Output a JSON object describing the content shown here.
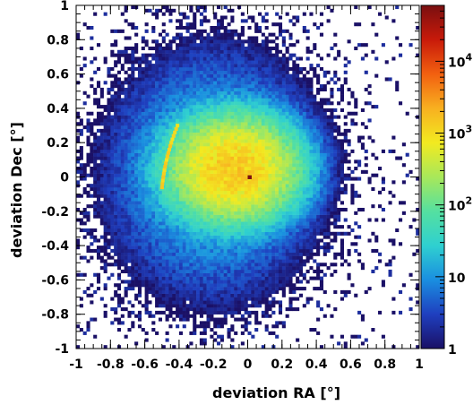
{
  "chart_data": {
    "type": "heatmap",
    "title": "",
    "xlabel": "deviation RA [°]",
    "ylabel": "deviation Dec [°]",
    "xlim": [
      -1,
      1
    ],
    "ylim": [
      -1,
      1
    ],
    "x_ticks": [
      -1,
      -0.8,
      -0.6,
      -0.4,
      -0.2,
      0,
      0.2,
      0.4,
      0.6,
      0.8,
      1
    ],
    "x_tick_labels": [
      "-1",
      "-0.8",
      "-0.6",
      "-0.4",
      "-0.2",
      "0",
      "0.2",
      "0.4",
      "0.6",
      "0.8",
      "1"
    ],
    "y_ticks": [
      -1,
      -0.8,
      -0.6,
      -0.4,
      -0.2,
      0,
      0.2,
      0.4,
      0.6,
      0.8,
      1
    ],
    "y_tick_labels": [
      "-1",
      "-0.8",
      "-0.6",
      "-0.4",
      "-0.2",
      "0",
      "0.2",
      "0.4",
      "0.6",
      "0.8",
      "1"
    ],
    "bin_width": 0.02,
    "colorbar": {
      "scale": "log",
      "range": [
        1,
        60000
      ],
      "colors": [
        "#1a1066",
        "#1f3fbf",
        "#1a8ee0",
        "#2fd0d0",
        "#55e0a0",
        "#a8e85a",
        "#f2ea20",
        "#f8b020",
        "#f26010",
        "#c81a0a",
        "#7a0f10"
      ],
      "ticks": [
        {
          "value": 1,
          "base": "1",
          "exp": ""
        },
        {
          "value": 10,
          "base": "10",
          "exp": ""
        },
        {
          "value": 100,
          "base": "10",
          "exp": "2"
        },
        {
          "value": 1000,
          "base": "10",
          "exp": "3"
        },
        {
          "value": 10000,
          "base": "10",
          "exp": "4"
        }
      ]
    },
    "features": {
      "core": {
        "center_x": -0.08,
        "center_y": 0.05,
        "sigma_x": 0.16,
        "sigma_y": 0.13,
        "peak": 1500
      },
      "halo": {
        "center_x": -0.2,
        "center_y": 0.02,
        "sigma_x": 0.3,
        "sigma_y": 0.35,
        "peak": 18
      },
      "hotspot": {
        "x": 0.01,
        "y": 0.0,
        "count": 60000
      },
      "arc": {
        "x_start": -0.5,
        "y_start": -0.06,
        "x_end": -0.41,
        "y_end": 0.3,
        "count": 1200
      }
    }
  }
}
